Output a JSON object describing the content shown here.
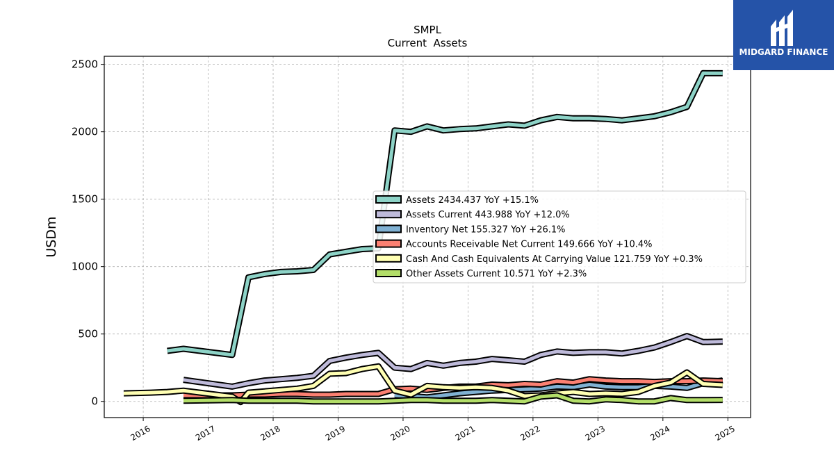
{
  "chart_data": {
    "type": "line",
    "title": "SMPL",
    "subtitle": "Current  Assets",
    "ylabel": "USDm",
    "xlabel": "",
    "xlim": [
      2015.4,
      2025.35
    ],
    "ylim": [
      -120,
      2560
    ],
    "yticks": [
      0,
      500,
      1000,
      1500,
      2000,
      2500
    ],
    "xticks": [
      2016,
      2017,
      2018,
      2019,
      2020,
      2021,
      2022,
      2023,
      2024,
      2025
    ],
    "grid": true,
    "legend_position": "center-right",
    "series": [
      {
        "name": "Assets",
        "legend": "Assets  2434.437 YoY +15.1%",
        "color": "#8dd3c7",
        "points": [
          [
            2016.37,
            375
          ],
          [
            2016.62,
            390
          ],
          [
            2017.37,
            345
          ],
          [
            2017.62,
            920
          ],
          [
            2017.87,
            945
          ],
          [
            2018.12,
            960
          ],
          [
            2018.37,
            965
          ],
          [
            2018.62,
            975
          ],
          [
            2018.87,
            1090
          ],
          [
            2019.12,
            1110
          ],
          [
            2019.37,
            1130
          ],
          [
            2019.62,
            1135
          ],
          [
            2019.87,
            2010
          ],
          [
            2020.12,
            2000
          ],
          [
            2020.37,
            2040
          ],
          [
            2020.62,
            2010
          ],
          [
            2020.87,
            2020
          ],
          [
            2021.12,
            2025
          ],
          [
            2021.37,
            2040
          ],
          [
            2021.62,
            2055
          ],
          [
            2021.87,
            2045
          ],
          [
            2022.12,
            2085
          ],
          [
            2022.37,
            2110
          ],
          [
            2022.62,
            2100
          ],
          [
            2022.87,
            2100
          ],
          [
            2023.12,
            2095
          ],
          [
            2023.37,
            2085
          ],
          [
            2023.62,
            2100
          ],
          [
            2023.87,
            2115
          ],
          [
            2024.12,
            2145
          ],
          [
            2024.37,
            2185
          ],
          [
            2024.62,
            2435
          ],
          [
            2024.92,
            2434
          ]
        ]
      },
      {
        "name": "Assets Current",
        "legend": "Assets Current  443.988 YoY +12.0%",
        "color": "#bebada",
        "points": [
          [
            2016.62,
            160
          ],
          [
            2017.37,
            110
          ],
          [
            2017.62,
            135
          ],
          [
            2017.87,
            155
          ],
          [
            2018.12,
            165
          ],
          [
            2018.37,
            175
          ],
          [
            2018.62,
            190
          ],
          [
            2018.87,
            300
          ],
          [
            2019.12,
            325
          ],
          [
            2019.37,
            345
          ],
          [
            2019.62,
            360
          ],
          [
            2019.87,
            250
          ],
          [
            2020.12,
            240
          ],
          [
            2020.37,
            285
          ],
          [
            2020.62,
            265
          ],
          [
            2020.87,
            285
          ],
          [
            2021.12,
            295
          ],
          [
            2021.37,
            315
          ],
          [
            2021.62,
            305
          ],
          [
            2021.87,
            295
          ],
          [
            2022.12,
            345
          ],
          [
            2022.37,
            370
          ],
          [
            2022.62,
            360
          ],
          [
            2022.87,
            365
          ],
          [
            2023.12,
            365
          ],
          [
            2023.37,
            355
          ],
          [
            2023.62,
            375
          ],
          [
            2023.87,
            400
          ],
          [
            2024.12,
            440
          ],
          [
            2024.37,
            485
          ],
          [
            2024.62,
            440
          ],
          [
            2024.92,
            444
          ]
        ]
      },
      {
        "name": "Inventory Net",
        "legend": "Inventory Net  155.327 YoY +26.1%",
        "color": "#80b1d3",
        "points": [
          [
            2019.87,
            45
          ],
          [
            2020.12,
            40
          ],
          [
            2020.37,
            30
          ],
          [
            2020.62,
            45
          ],
          [
            2020.87,
            60
          ],
          [
            2021.12,
            70
          ],
          [
            2021.37,
            80
          ],
          [
            2021.62,
            85
          ],
          [
            2021.87,
            90
          ],
          [
            2022.12,
            95
          ],
          [
            2022.37,
            110
          ],
          [
            2022.62,
            105
          ],
          [
            2022.87,
            125
          ],
          [
            2023.12,
            110
          ],
          [
            2023.37,
            105
          ],
          [
            2023.62,
            105
          ],
          [
            2023.87,
            115
          ],
          [
            2024.12,
            110
          ],
          [
            2024.37,
            100
          ],
          [
            2024.62,
            135
          ],
          [
            2024.92,
            155
          ]
        ]
      },
      {
        "name": "Accounts Receivable Net Current",
        "legend": "Accounts Receivable Net Current  149.666 YoY +10.4%",
        "color": "#fb8072",
        "points": [
          [
            2016.62,
            45
          ],
          [
            2017.37,
            45
          ],
          [
            2017.62,
            50
          ],
          [
            2017.87,
            50
          ],
          [
            2018.12,
            55
          ],
          [
            2018.37,
            55
          ],
          [
            2018.62,
            50
          ],
          [
            2018.87,
            50
          ],
          [
            2019.12,
            55
          ],
          [
            2019.37,
            55
          ],
          [
            2019.62,
            55
          ],
          [
            2019.87,
            90
          ],
          [
            2020.12,
            95
          ],
          [
            2020.37,
            85
          ],
          [
            2020.62,
            100
          ],
          [
            2020.87,
            110
          ],
          [
            2021.12,
            110
          ],
          [
            2021.37,
            125
          ],
          [
            2021.62,
            120
          ],
          [
            2021.87,
            130
          ],
          [
            2022.12,
            125
          ],
          [
            2022.37,
            150
          ],
          [
            2022.62,
            140
          ],
          [
            2022.87,
            165
          ],
          [
            2023.12,
            155
          ],
          [
            2023.37,
            150
          ],
          [
            2023.62,
            150
          ],
          [
            2023.87,
            145
          ],
          [
            2024.12,
            150
          ],
          [
            2024.37,
            150
          ],
          [
            2024.62,
            155
          ],
          [
            2024.92,
            150
          ]
        ]
      },
      {
        "name": "Cash And Cash Equivalents At Carrying Value",
        "legend": "Cash And Cash Equivalents At Carrying Value  121.759 YoY +0.3%",
        "color": "#ffffb3",
        "points": [
          [
            2015.7,
            60
          ],
          [
            2016.12,
            65
          ],
          [
            2016.37,
            70
          ],
          [
            2016.62,
            80
          ],
          [
            2017.37,
            35
          ],
          [
            2017.5,
            -5
          ],
          [
            2017.62,
            65
          ],
          [
            2017.87,
            75
          ],
          [
            2018.12,
            85
          ],
          [
            2018.37,
            95
          ],
          [
            2018.62,
            115
          ],
          [
            2018.87,
            205
          ],
          [
            2019.12,
            210
          ],
          [
            2019.37,
            240
          ],
          [
            2019.62,
            260
          ],
          [
            2019.87,
            80
          ],
          [
            2020.12,
            50
          ],
          [
            2020.37,
            115
          ],
          [
            2020.62,
            105
          ],
          [
            2020.87,
            100
          ],
          [
            2021.12,
            105
          ],
          [
            2021.37,
            100
          ],
          [
            2021.62,
            80
          ],
          [
            2021.87,
            40
          ],
          [
            2022.12,
            45
          ],
          [
            2022.37,
            60
          ],
          [
            2022.62,
            70
          ],
          [
            2022.87,
            55
          ],
          [
            2023.12,
            60
          ],
          [
            2023.37,
            55
          ],
          [
            2023.62,
            70
          ],
          [
            2023.87,
            115
          ],
          [
            2024.12,
            140
          ],
          [
            2024.37,
            215
          ],
          [
            2024.62,
            130
          ],
          [
            2024.92,
            122
          ]
        ]
      },
      {
        "name": "Other Assets Current",
        "legend": "Other Assets Current  10.571 YoY +2.3%",
        "color": "#b3de69",
        "points": [
          [
            2016.62,
            5
          ],
          [
            2017.37,
            10
          ],
          [
            2017.62,
            5
          ],
          [
            2017.87,
            5
          ],
          [
            2018.12,
            5
          ],
          [
            2018.37,
            5
          ],
          [
            2018.62,
            0
          ],
          [
            2018.87,
            0
          ],
          [
            2019.12,
            0
          ],
          [
            2019.37,
            0
          ],
          [
            2019.62,
            0
          ],
          [
            2019.87,
            5
          ],
          [
            2020.12,
            10
          ],
          [
            2020.37,
            10
          ],
          [
            2020.62,
            5
          ],
          [
            2020.87,
            5
          ],
          [
            2021.12,
            5
          ],
          [
            2021.37,
            10
          ],
          [
            2021.62,
            5
          ],
          [
            2021.87,
            0
          ],
          [
            2022.12,
            35
          ],
          [
            2022.37,
            45
          ],
          [
            2022.62,
            5
          ],
          [
            2022.87,
            0
          ],
          [
            2023.12,
            15
          ],
          [
            2023.37,
            10
          ],
          [
            2023.62,
            0
          ],
          [
            2023.87,
            0
          ],
          [
            2024.12,
            25
          ],
          [
            2024.37,
            10
          ],
          [
            2024.62,
            10
          ],
          [
            2024.92,
            11
          ]
        ]
      }
    ]
  },
  "logo": {
    "text": "MIDGARD FINANCE"
  }
}
